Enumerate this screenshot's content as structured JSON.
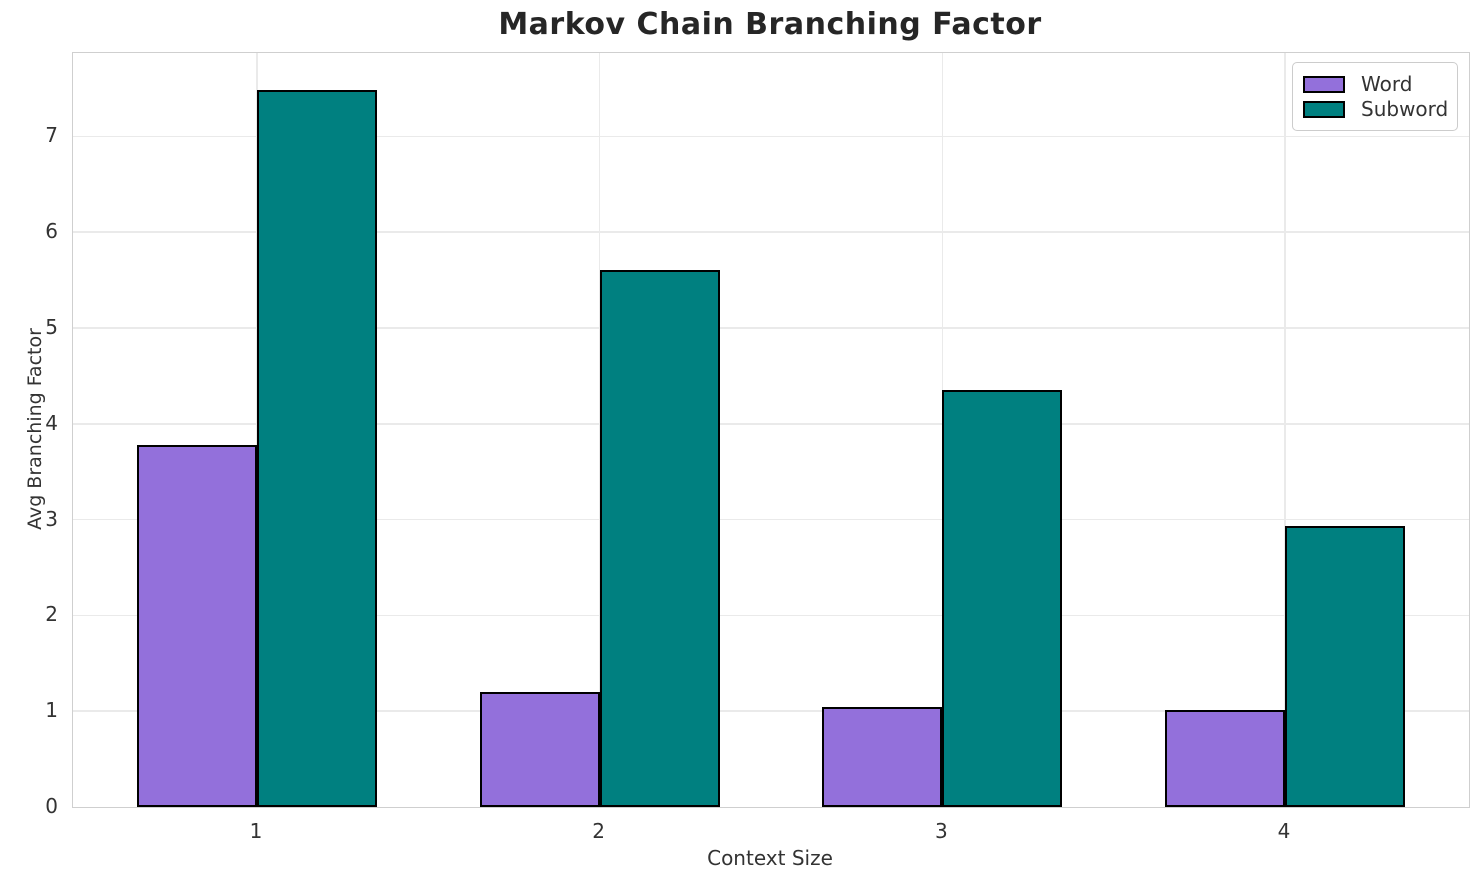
{
  "title": "Markov Chain Branching Factor",
  "chart_data": {
    "type": "bar",
    "categories": [
      "1",
      "2",
      "3",
      "4"
    ],
    "series": [
      {
        "name": "Word",
        "color": "#9370DB",
        "values": [
          3.78,
          1.2,
          1.04,
          1.01
        ]
      },
      {
        "name": "Subword",
        "color": "#008080",
        "values": [
          7.48,
          5.6,
          4.35,
          2.93
        ]
      }
    ],
    "title": "Markov Chain Branching Factor",
    "xlabel": "Context Size",
    "ylabel": "Avg Branching Factor",
    "ylim": [
      0,
      7.87
    ],
    "yticks": [
      0,
      1,
      2,
      3,
      4,
      5,
      6,
      7
    ],
    "grid": true,
    "legend_position": "upper right",
    "bar_edge_color": "#000000",
    "grid_color": "#eaeaea",
    "spine_color": "#cfcfcf",
    "text_color": "#333333",
    "title_color": "#262626"
  }
}
